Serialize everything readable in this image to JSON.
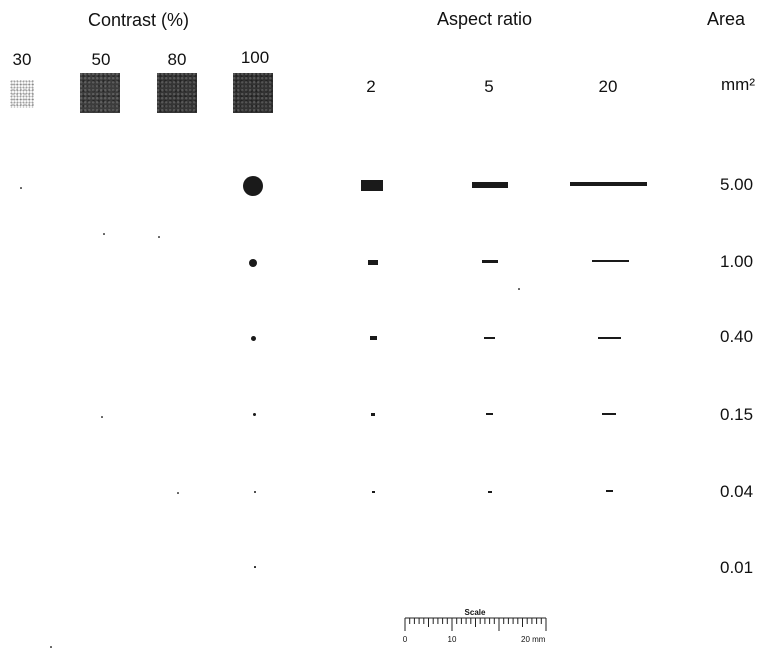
{
  "headers": {
    "contrast": "Contrast (%)",
    "aspect_ratio": "Aspect ratio",
    "area": "Area"
  },
  "contrast_levels": [
    "30",
    "50",
    "80",
    "100"
  ],
  "aspect_ratios": [
    "2",
    "5",
    "20"
  ],
  "area_unit": "mm²",
  "areas": [
    "5.00",
    "1.00",
    "0.40",
    "0.15",
    "0.04",
    "0.01"
  ],
  "scale": {
    "title": "Scale",
    "ticks": [
      "0",
      "10",
      "20 mm"
    ]
  }
}
